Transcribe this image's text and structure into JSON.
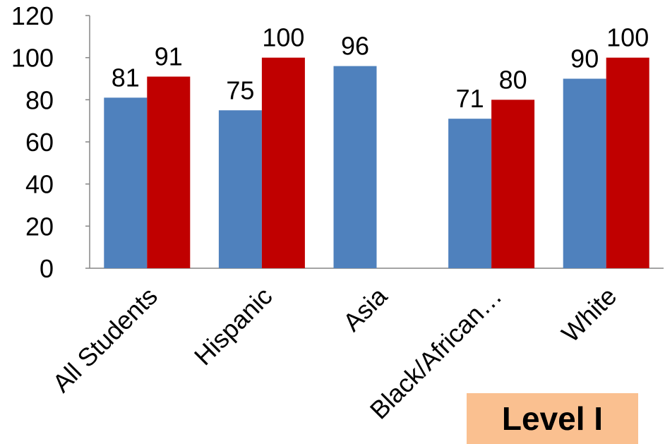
{
  "chart_data": {
    "type": "bar",
    "title": "",
    "xlabel": "",
    "ylabel": "",
    "ylim": [
      0,
      120
    ],
    "yticks": [
      0,
      20,
      40,
      60,
      80,
      100,
      120
    ],
    "categories": [
      "All Students",
      "Hispanic",
      "Asia",
      "Black/African…",
      "White"
    ],
    "series": [
      {
        "color": "#4f81bd",
        "values": [
          81,
          75,
          96,
          71,
          90
        ]
      },
      {
        "color": "#c00000",
        "values": [
          91,
          100,
          null,
          80,
          100
        ]
      }
    ],
    "grid": false,
    "legend": "none"
  },
  "badge": {
    "label": "Level I",
    "color": "#fac090"
  }
}
